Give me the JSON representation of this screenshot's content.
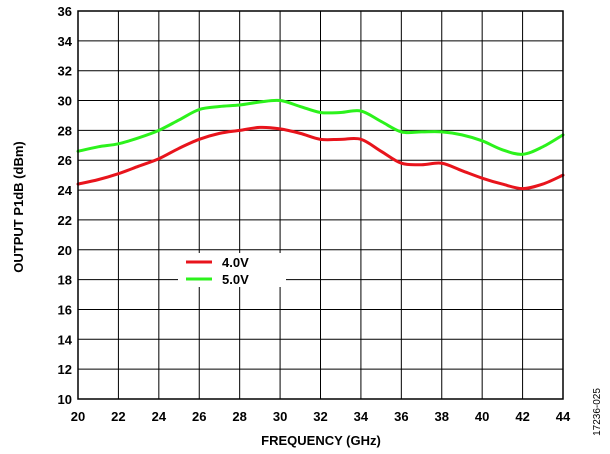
{
  "chart_data": {
    "type": "line",
    "xlabel": "FREQUENCY (GHz)",
    "ylabel": "OUTPUT P1dB (dBm)",
    "xlim": [
      20,
      44
    ],
    "ylim": [
      10,
      36
    ],
    "x_ticks": [
      20,
      22,
      24,
      26,
      28,
      30,
      32,
      34,
      36,
      38,
      40,
      42,
      44
    ],
    "y_ticks": [
      10,
      12,
      14,
      16,
      18,
      20,
      22,
      24,
      26,
      28,
      30,
      32,
      34,
      36
    ],
    "grid": true,
    "legend_placement": "center-left",
    "series": [
      {
        "name": "4.0V",
        "color": "#e8141c",
        "points": [
          [
            20,
            24.4
          ],
          [
            21,
            24.7
          ],
          [
            22,
            25.1
          ],
          [
            23,
            25.6
          ],
          [
            24,
            26.1
          ],
          [
            25,
            26.8
          ],
          [
            26,
            27.4
          ],
          [
            27,
            27.8
          ],
          [
            28,
            28.0
          ],
          [
            29,
            28.2
          ],
          [
            30,
            28.1
          ],
          [
            31,
            27.8
          ],
          [
            32,
            27.4
          ],
          [
            33,
            27.4
          ],
          [
            34,
            27.4
          ],
          [
            35,
            26.6
          ],
          [
            36,
            25.8
          ],
          [
            37,
            25.7
          ],
          [
            38,
            25.8
          ],
          [
            39,
            25.3
          ],
          [
            40,
            24.8
          ],
          [
            41,
            24.4
          ],
          [
            42,
            24.1
          ],
          [
            43,
            24.4
          ],
          [
            44,
            25.0
          ]
        ]
      },
      {
        "name": "5.0V",
        "color": "#2cf21c",
        "points": [
          [
            20,
            26.6
          ],
          [
            21,
            26.9
          ],
          [
            22,
            27.1
          ],
          [
            23,
            27.5
          ],
          [
            24,
            28.0
          ],
          [
            25,
            28.7
          ],
          [
            26,
            29.4
          ],
          [
            27,
            29.6
          ],
          [
            28,
            29.7
          ],
          [
            29,
            29.9
          ],
          [
            30,
            30.0
          ],
          [
            31,
            29.6
          ],
          [
            32,
            29.2
          ],
          [
            33,
            29.2
          ],
          [
            34,
            29.3
          ],
          [
            35,
            28.6
          ],
          [
            36,
            27.9
          ],
          [
            37,
            27.9
          ],
          [
            38,
            27.9
          ],
          [
            39,
            27.7
          ],
          [
            40,
            27.3
          ],
          [
            41,
            26.7
          ],
          [
            42,
            26.4
          ],
          [
            43,
            26.9
          ],
          [
            44,
            27.7
          ]
        ]
      }
    ]
  },
  "figure_id": "17236-025"
}
